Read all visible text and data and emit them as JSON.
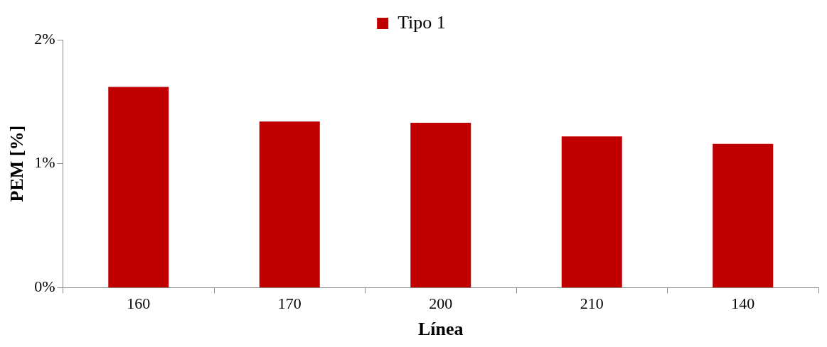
{
  "chart_data": {
    "type": "bar",
    "xlabel": "Línea",
    "ylabel": "PEM [%]",
    "categories": [
      "160",
      "170",
      "200",
      "210",
      "140"
    ],
    "series": [
      {
        "name": "Tipo 1",
        "color": "#c00000",
        "values": [
          1.62,
          1.34,
          1.33,
          1.22,
          1.16
        ]
      }
    ],
    "ylim": [
      0,
      2
    ],
    "yticks": [
      {
        "value": 0,
        "label": "0%"
      },
      {
        "value": 1,
        "label": "1%"
      },
      {
        "value": 2,
        "label": "2%"
      }
    ],
    "grid": false,
    "legend": "top"
  }
}
